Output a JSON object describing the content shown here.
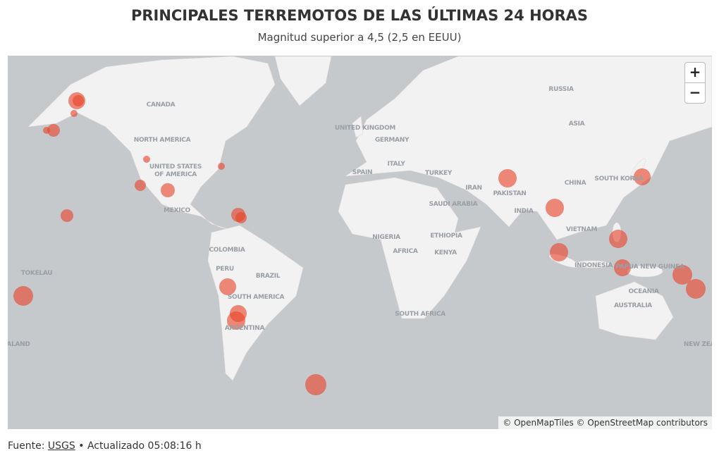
{
  "header": {
    "title": "PRINCIPALES TERREMOTOS DE LAS ÚLTIMAS 24 HORAS",
    "subtitle": "Magnitud superior a 4,5 (2,5 en EEUU)"
  },
  "map": {
    "labels": [
      "RUSSIA",
      "CANADA",
      "NORTH AMERICA",
      "UNITED STATES",
      "OF AMERICA",
      "MEXICO",
      "COLOMBIA",
      "PERU",
      "BRAZIL",
      "SOUTH AMERICA",
      "ARGENTINA",
      "TOKELAU",
      "ALAND",
      "UNITED KINGDOM",
      "GERMANY",
      "ITALY",
      "SPAIN",
      "TURKEY",
      "IRAN",
      "PAKISTAN",
      "SAUDI ARABIA",
      "INDIA",
      "CHINA",
      "SOUTH KOREA",
      "ASIA",
      "VIETNAM",
      "INDONESIA",
      "PAPUA NEW GUINEA",
      "OCEANIA",
      "AUSTRALIA",
      "NEW ZEA",
      "NIGERIA",
      "ETHIOPIA",
      "AFRICA",
      "KENYA",
      "SOUTH AFRICA"
    ],
    "zoom_in": "+",
    "zoom_out": "−",
    "attribution": "© OpenMapTiles © OpenStreetMap contributors"
  },
  "footer": {
    "source_prefix": "Fuente:",
    "source_link": "USGS",
    "updated": "• Actualizado 05:08:16 h"
  }
}
